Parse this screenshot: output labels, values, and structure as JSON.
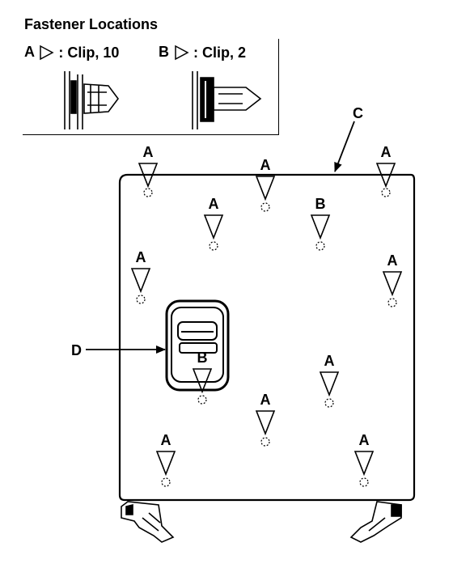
{
  "title": "Fastener Locations",
  "legend": [
    {
      "letter": "A",
      "desc": ": Clip, 10"
    },
    {
      "letter": "B",
      "desc": ": Clip, 2"
    }
  ],
  "callouts": {
    "panel": "C",
    "handle": "D"
  },
  "clips": [
    {
      "type": "A"
    },
    {
      "type": "A"
    },
    {
      "type": "A"
    },
    {
      "type": "A"
    },
    {
      "type": "B"
    },
    {
      "type": "A"
    },
    {
      "type": "A"
    },
    {
      "type": "B"
    },
    {
      "type": "A"
    },
    {
      "type": "A"
    },
    {
      "type": "A"
    },
    {
      "type": "A"
    }
  ]
}
